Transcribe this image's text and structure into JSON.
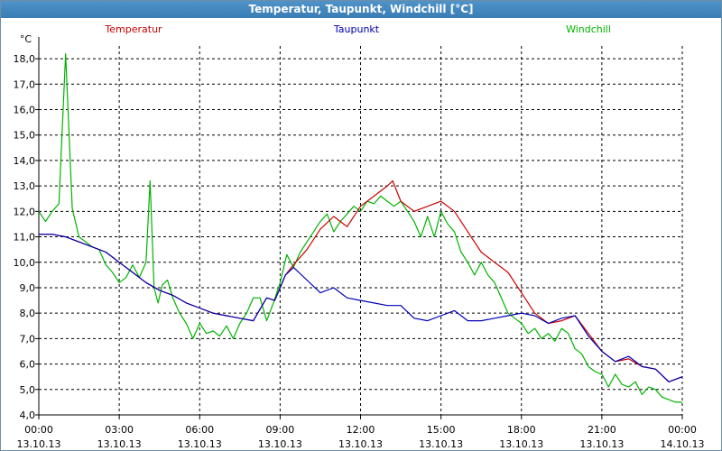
{
  "window": {
    "title": "Temperatur, Taupunkt, Windchill [°C]"
  },
  "colors": {
    "temperatur": "#cc0000",
    "taupunkt": "#0000b4",
    "windchill": "#00b400",
    "grid": "#000000",
    "title_bg": "#3f84bd"
  },
  "chart_data": {
    "type": "line",
    "title": "Temperatur, Taupunkt, Windchill [°C]",
    "ylabel": "°C",
    "ylim": [
      4.0,
      18.5
    ],
    "y_ticks": [
      "4,0",
      "5,0",
      "6,0",
      "7,0",
      "8,0",
      "9,0",
      "10,0",
      "11,0",
      "12,0",
      "13,0",
      "14,0",
      "15,0",
      "16,0",
      "17,0",
      "18,0"
    ],
    "xlim": [
      0,
      24
    ],
    "x_ticks": [
      {
        "time": "00:00",
        "date": "13.10.13"
      },
      {
        "time": "03:00",
        "date": "13.10.13"
      },
      {
        "time": "06:00",
        "date": "13.10.13"
      },
      {
        "time": "09:00",
        "date": "13.10.13"
      },
      {
        "time": "12:00",
        "date": "13.10.13"
      },
      {
        "time": "15:00",
        "date": "13.10.13"
      },
      {
        "time": "18:00",
        "date": "13.10.13"
      },
      {
        "time": "21:00",
        "date": "13.10.13"
      },
      {
        "time": "00:00",
        "date": "14.10.13"
      }
    ],
    "grid": true,
    "legend_placement": "top",
    "series": [
      {
        "name": "Temperatur",
        "color": "#cc0000",
        "x": [
          0,
          0.5,
          1,
          1.5,
          2,
          2.5,
          3,
          3.5,
          4,
          4.5,
          5,
          5.5,
          6,
          6.5,
          7,
          7.5,
          8,
          8.5,
          8.8,
          9,
          9.2,
          9.5,
          10,
          10.5,
          11,
          11.5,
          12,
          12.5,
          13,
          13.2,
          13.5,
          14,
          14.5,
          15,
          15.5,
          16,
          16.5,
          17,
          17.5,
          18,
          18.5,
          19,
          19.5,
          20,
          20.5,
          21,
          21.5,
          22,
          22.5,
          23,
          23.5,
          24
        ],
        "values": [
          11.1,
          11.1,
          11.0,
          10.8,
          10.6,
          10.4,
          10.0,
          9.6,
          9.2,
          8.9,
          8.7,
          8.4,
          8.2,
          8.0,
          7.9,
          7.8,
          7.7,
          8.6,
          8.5,
          9.0,
          9.5,
          9.9,
          10.5,
          11.3,
          11.8,
          11.4,
          12.2,
          12.6,
          13.0,
          13.2,
          12.4,
          12.0,
          12.2,
          12.4,
          12.0,
          11.2,
          10.4,
          10.0,
          9.6,
          8.8,
          8.0,
          7.6,
          7.7,
          7.9,
          7.2,
          6.5,
          6.1,
          6.2,
          5.9,
          5.8,
          5.3,
          5.5
        ]
      },
      {
        "name": "Taupunkt",
        "color": "#0000b4",
        "x": [
          0,
          0.5,
          1,
          1.5,
          2,
          2.5,
          3,
          3.5,
          4,
          4.5,
          5,
          5.5,
          6,
          6.5,
          7,
          7.5,
          8,
          8.5,
          8.8,
          9,
          9.2,
          9.5,
          10,
          10.5,
          11,
          11.5,
          12,
          12.5,
          13,
          13.5,
          14,
          14.5,
          15,
          15.5,
          16,
          16.5,
          17,
          17.5,
          18,
          18.5,
          19,
          19.5,
          20,
          20.5,
          21,
          21.5,
          22,
          22.5,
          23,
          23.5,
          24
        ],
        "values": [
          11.1,
          11.1,
          11.0,
          10.8,
          10.6,
          10.4,
          10.0,
          9.6,
          9.2,
          8.9,
          8.7,
          8.4,
          8.2,
          8.0,
          7.9,
          7.8,
          7.7,
          8.6,
          8.5,
          9.0,
          9.5,
          9.8,
          9.3,
          8.8,
          9.0,
          8.6,
          8.5,
          8.4,
          8.3,
          8.3,
          7.8,
          7.7,
          7.9,
          8.1,
          7.7,
          7.7,
          7.8,
          7.9,
          8.0,
          7.9,
          7.6,
          7.8,
          7.9,
          7.1,
          6.5,
          6.1,
          6.3,
          5.9,
          5.8,
          5.3,
          5.5
        ]
      },
      {
        "name": "Windchill",
        "color": "#00b400",
        "x": [
          0,
          0.25,
          0.5,
          0.75,
          1,
          1.25,
          1.5,
          1.75,
          2,
          2.25,
          2.5,
          2.75,
          3,
          3.25,
          3.5,
          3.75,
          4,
          4.15,
          4.3,
          4.45,
          4.6,
          4.8,
          5,
          5.25,
          5.5,
          5.75,
          6,
          6.25,
          6.5,
          6.75,
          7,
          7.25,
          7.5,
          7.75,
          8,
          8.25,
          8.5,
          8.75,
          9,
          9.25,
          9.5,
          9.75,
          10,
          10.25,
          10.5,
          10.75,
          11,
          11.25,
          11.5,
          11.75,
          12,
          12.25,
          12.5,
          12.75,
          13,
          13.25,
          13.5,
          13.75,
          14,
          14.25,
          14.5,
          14.75,
          15,
          15.25,
          15.5,
          15.75,
          16,
          16.25,
          16.5,
          16.75,
          17,
          17.25,
          17.5,
          17.75,
          18,
          18.25,
          18.5,
          18.75,
          19,
          19.25,
          19.5,
          19.75,
          20,
          20.25,
          20.5,
          20.75,
          21,
          21.25,
          21.5,
          21.75,
          22,
          22.25,
          22.5,
          22.75,
          23,
          23.25,
          23.5,
          23.75,
          24
        ],
        "values": [
          12.0,
          11.6,
          12.0,
          12.3,
          18.2,
          12.1,
          11.0,
          10.8,
          10.6,
          10.5,
          9.9,
          9.6,
          9.2,
          9.4,
          9.9,
          9.4,
          10.0,
          13.2,
          9.0,
          8.4,
          9.1,
          9.3,
          8.6,
          8.0,
          7.6,
          7.0,
          7.6,
          7.2,
          7.3,
          7.1,
          7.5,
          7.0,
          7.6,
          8.0,
          8.6,
          8.6,
          7.7,
          8.4,
          9.2,
          10.3,
          9.8,
          10.4,
          10.8,
          11.2,
          11.6,
          11.9,
          11.2,
          11.6,
          11.9,
          12.2,
          12.0,
          12.4,
          12.3,
          12.6,
          12.4,
          12.2,
          12.4,
          12.0,
          11.6,
          11.0,
          11.8,
          11.0,
          12.0,
          11.5,
          11.2,
          10.4,
          10.0,
          9.5,
          10.0,
          9.5,
          9.2,
          8.6,
          8.0,
          7.8,
          7.6,
          7.2,
          7.4,
          7.0,
          7.2,
          6.9,
          7.4,
          7.2,
          6.6,
          6.4,
          5.9,
          5.7,
          5.6,
          5.1,
          5.6,
          5.2,
          5.1,
          5.3,
          4.8,
          5.1,
          5.0,
          4.7,
          4.6,
          4.5,
          4.5
        ]
      }
    ]
  }
}
